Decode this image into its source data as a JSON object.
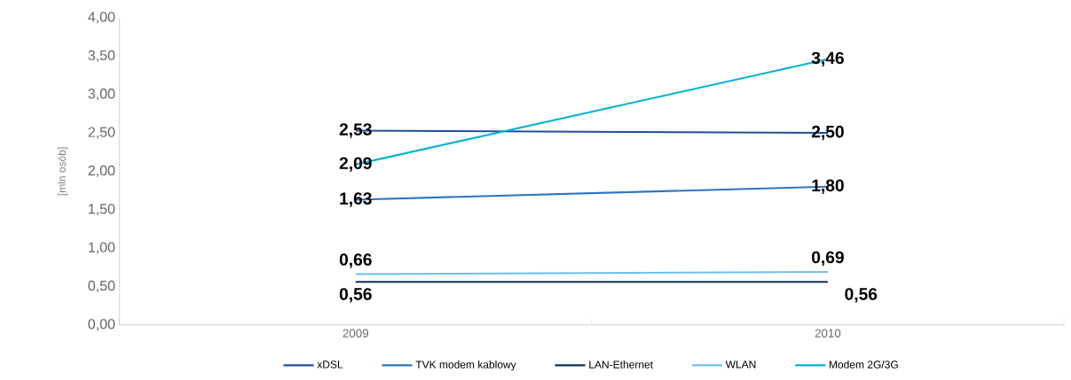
{
  "chart_data": {
    "type": "line",
    "ylabel": "[mln osób]",
    "categories": [
      "2009",
      "2010"
    ],
    "ylim": [
      0,
      4
    ],
    "yticks": [
      "0,00",
      "0,50",
      "1,00",
      "1,50",
      "2,00",
      "2,50",
      "3,00",
      "3,50",
      "4,00"
    ],
    "series": [
      {
        "name": "xDSL",
        "color": "#1f4e9a",
        "values": [
          2.53,
          2.5
        ],
        "value_labels": [
          "2,53",
          "2,50"
        ]
      },
      {
        "name": "TVK modem kablowy",
        "color": "#2e75c0",
        "values": [
          1.63,
          1.8
        ],
        "value_labels": [
          "1,63",
          "1,80"
        ]
      },
      {
        "name": "LAN-Ethernet",
        "color": "#0d2f4f",
        "values": [
          0.56,
          0.56
        ],
        "value_labels": [
          "0,56",
          "0,56"
        ]
      },
      {
        "name": "WLAN",
        "color": "#6fbfe8",
        "values": [
          0.66,
          0.69
        ],
        "value_labels": [
          "0,66",
          "0,69"
        ]
      },
      {
        "name": "Modem 2G/3G",
        "color": "#00b4d0",
        "values": [
          2.09,
          3.46
        ],
        "value_labels": [
          "2,09",
          "3,46"
        ]
      }
    ],
    "legend": "bottom",
    "grid": false,
    "marker": "none",
    "line_style": "solid"
  }
}
